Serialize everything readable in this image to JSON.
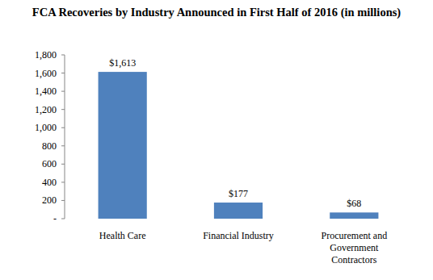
{
  "chart_data": {
    "type": "bar",
    "title": "FCA Recoveries by Industry Announced in First Half of 2016 (in millions)",
    "categories": [
      "Health Care",
      "Financial Industry",
      "Procurement and Government Contractors"
    ],
    "values": [
      1613,
      177,
      68
    ],
    "value_labels": [
      "$1,613",
      "$177",
      "$68"
    ],
    "color": "#4f81bd",
    "ylim": [
      0,
      1800
    ],
    "yticks": [
      {
        "value": 0,
        "label": "-"
      },
      200,
      400,
      600,
      800,
      {
        "value": 1000,
        "label": "1,000"
      },
      {
        "value": 1200,
        "label": "1,200"
      },
      {
        "value": 1400,
        "label": "1,400"
      },
      {
        "value": 1600,
        "label": "1,600"
      },
      {
        "value": 1800,
        "label": "1,800"
      }
    ],
    "grid": false,
    "data_labels": true
  }
}
